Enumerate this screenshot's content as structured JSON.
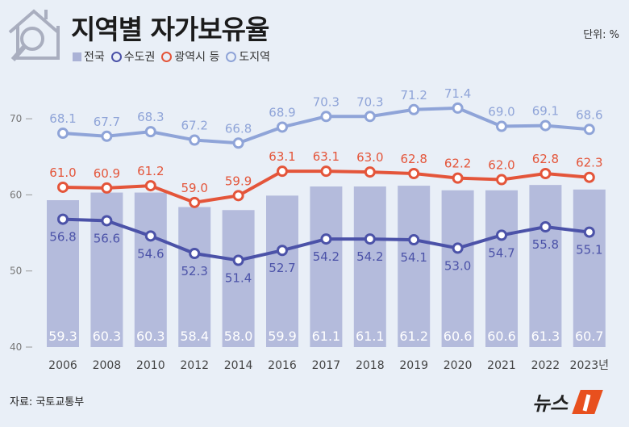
{
  "title": "지역별 자가보유율",
  "unit": "단위: %",
  "source": "자료: 국토교통부",
  "logo_text": "뉴스1",
  "colors": {
    "background": "#e9eff7",
    "bar": "#b4bbdc",
    "seoul_metro": "#4b52a8",
    "metro_cities": "#e4553a",
    "provinces": "#8fa4d8"
  },
  "chart_data": {
    "type": "bar+line",
    "categories": [
      "2006",
      "2008",
      "2010",
      "2012",
      "2014",
      "2016",
      "2017",
      "2018",
      "2019",
      "2020",
      "2021",
      "2022",
      "2023년"
    ],
    "ylim": [
      40,
      70
    ],
    "yticks": [
      40,
      50,
      60,
      70
    ],
    "grid": false,
    "legend_position": "top-left",
    "series": [
      {
        "name": "전국",
        "type": "bar",
        "color": "#b4bbdc",
        "values": [
          59.3,
          60.3,
          60.3,
          58.4,
          58.0,
          59.9,
          61.1,
          61.1,
          61.2,
          60.6,
          60.6,
          61.3,
          60.7
        ]
      },
      {
        "name": "수도권",
        "type": "line",
        "color": "#4b52a8",
        "values": [
          56.8,
          56.6,
          54.6,
          52.3,
          51.4,
          52.7,
          54.2,
          54.2,
          54.1,
          53.0,
          54.7,
          55.8,
          55.1
        ]
      },
      {
        "name": "광역시 등",
        "type": "line",
        "color": "#e4553a",
        "values": [
          61.0,
          60.9,
          61.2,
          59.0,
          59.9,
          63.1,
          63.1,
          63.0,
          62.8,
          62.2,
          62.0,
          62.8,
          62.3
        ]
      },
      {
        "name": "도지역",
        "type": "line",
        "color": "#8fa4d8",
        "values": [
          68.1,
          67.7,
          68.3,
          67.2,
          66.8,
          68.9,
          70.3,
          70.3,
          71.2,
          71.4,
          69.0,
          69.1,
          68.6
        ]
      }
    ]
  }
}
